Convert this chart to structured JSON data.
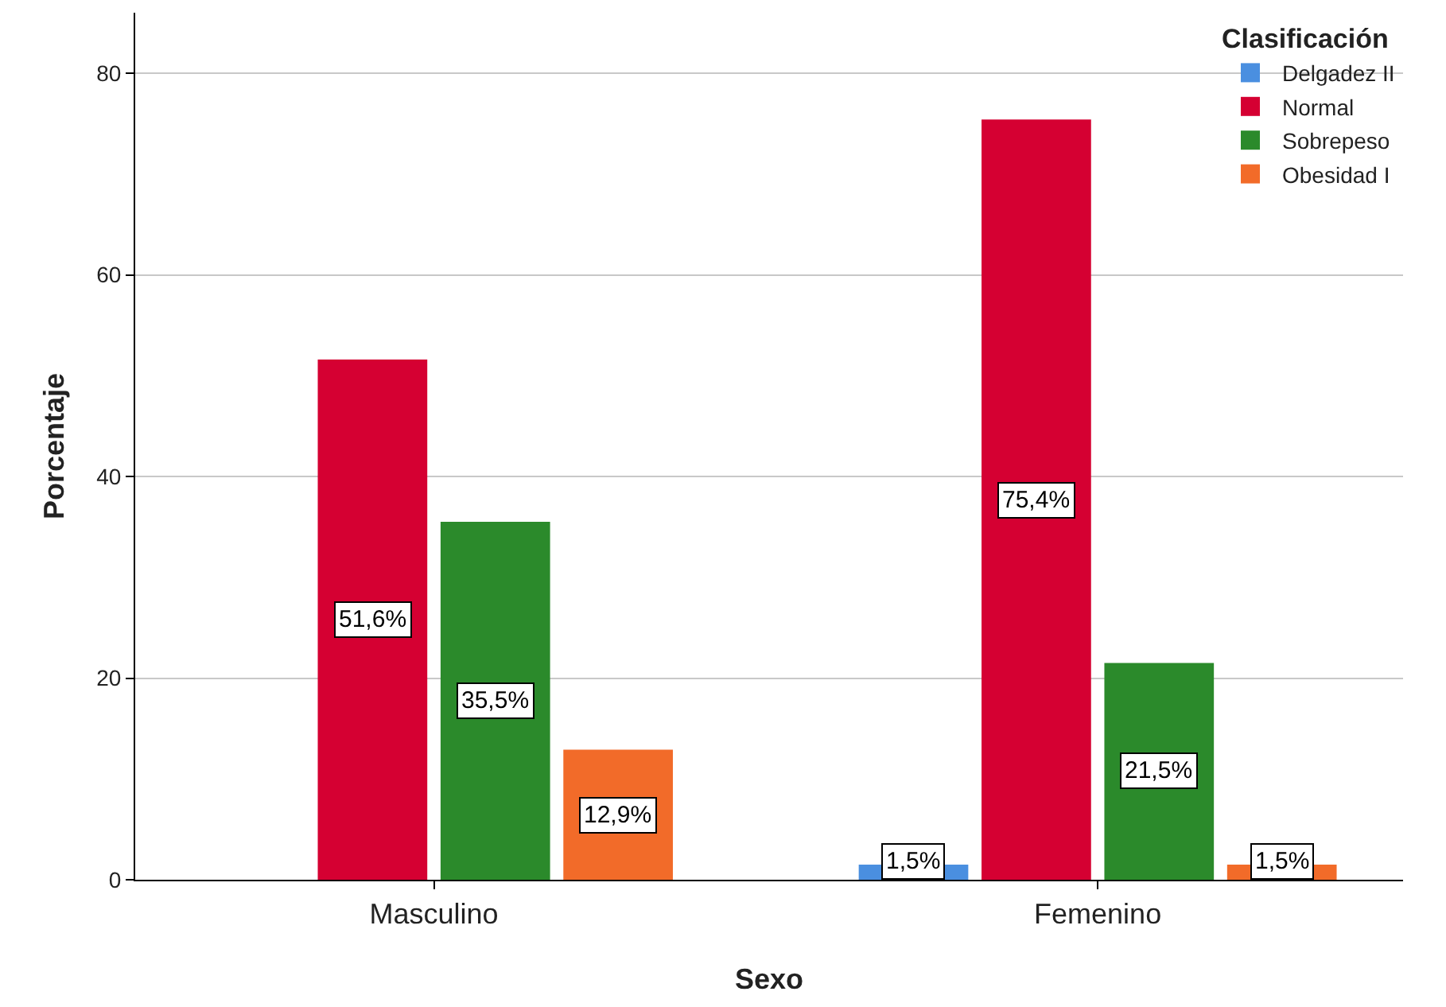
{
  "chart_data": {
    "type": "bar",
    "xlabel": "Sexo",
    "ylabel": "Porcentaje",
    "legend_title": "Clasificación",
    "categories": [
      "Masculino",
      "Femenino"
    ],
    "series": [
      {
        "name": "Delgadez II",
        "color": "#4a8fe0",
        "values": [
          null,
          1.5
        ],
        "value_labels": [
          null,
          "1,5%"
        ]
      },
      {
        "name": "Normal",
        "color": "#d50032",
        "values": [
          51.6,
          75.4
        ],
        "value_labels": [
          "51,6%",
          "75,4%"
        ]
      },
      {
        "name": "Sobrepeso",
        "color": "#2b8a2b",
        "values": [
          35.5,
          21.5
        ],
        "value_labels": [
          "35,5%",
          "21,5%"
        ]
      },
      {
        "name": "Obesidad I",
        "color": "#f26b29",
        "values": [
          12.9,
          1.5
        ],
        "value_labels": [
          "12,9%",
          "1,5%"
        ]
      }
    ],
    "ylim": [
      0,
      86
    ],
    "yticks": [
      0,
      20,
      40,
      60,
      80
    ],
    "grid": "y",
    "legend": "top right"
  }
}
